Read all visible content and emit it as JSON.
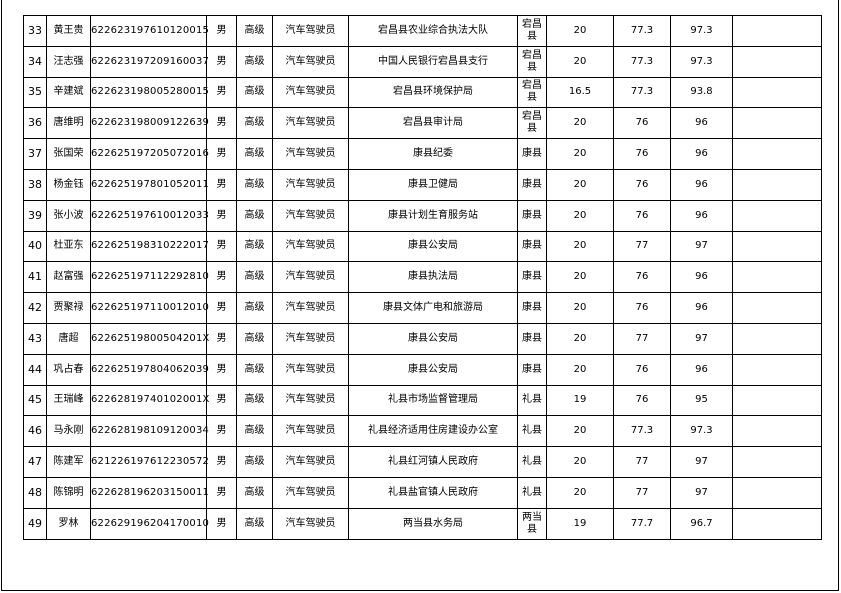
{
  "rows": [
    {
      "no": "33",
      "name": "黄王贵",
      "id": "622623197610120015",
      "gender": "男",
      "level": "高级",
      "job": "汽车驾驶员",
      "unit": "宕昌县农业综合执法大队",
      "county": "宕昌县",
      "score1": "20",
      "score2": "77.3",
      "total": "97.3",
      "remark": ""
    },
    {
      "no": "34",
      "name": "汪志强",
      "id": "622623197209160037",
      "gender": "男",
      "level": "高级",
      "job": "汽车驾驶员",
      "unit": "中国人民银行宕昌县支行",
      "county": "宕昌县",
      "score1": "20",
      "score2": "77.3",
      "total": "97.3",
      "remark": ""
    },
    {
      "no": "35",
      "name": "辛建斌",
      "id": "622623198005280015",
      "gender": "男",
      "level": "高级",
      "job": "汽车驾驶员",
      "unit": "宕昌县环境保护局",
      "county": "宕昌县",
      "score1": "16.5",
      "score2": "77.3",
      "total": "93.8",
      "remark": ""
    },
    {
      "no": "36",
      "name": "唐维明",
      "id": "622623198009122639",
      "gender": "男",
      "level": "高级",
      "job": "汽车驾驶员",
      "unit": "宕昌县审计局",
      "county": "宕昌县",
      "score1": "20",
      "score2": "76",
      "total": "96",
      "remark": ""
    },
    {
      "no": "37",
      "name": "张国荣",
      "id": "622625197205072016",
      "gender": "男",
      "level": "高级",
      "job": "汽车驾驶员",
      "unit": "康县纪委",
      "county": "康县",
      "score1": "20",
      "score2": "76",
      "total": "96",
      "remark": ""
    },
    {
      "no": "38",
      "name": "杨金钰",
      "id": "622625197801052011",
      "gender": "男",
      "level": "高级",
      "job": "汽车驾驶员",
      "unit": "康县卫健局",
      "county": "康县",
      "score1": "20",
      "score2": "76",
      "total": "96",
      "remark": ""
    },
    {
      "no": "39",
      "name": "张小波",
      "id": "622625197610012033",
      "gender": "男",
      "level": "高级",
      "job": "汽车驾驶员",
      "unit": "康县计划生育服务站",
      "county": "康县",
      "score1": "20",
      "score2": "76",
      "total": "96",
      "remark": ""
    },
    {
      "no": "40",
      "name": "杜亚东",
      "id": "622625198310222017",
      "gender": "男",
      "level": "高级",
      "job": "汽车驾驶员",
      "unit": "康县公安局",
      "county": "康县",
      "score1": "20",
      "score2": "77",
      "total": "97",
      "remark": ""
    },
    {
      "no": "41",
      "name": "赵富强",
      "id": "622625197112292810",
      "gender": "男",
      "level": "高级",
      "job": "汽车驾驶员",
      "unit": "康县执法局",
      "county": "康县",
      "score1": "20",
      "score2": "76",
      "total": "96",
      "remark": ""
    },
    {
      "no": "42",
      "name": "贾聚禄",
      "id": "622625197110012010",
      "gender": "男",
      "level": "高级",
      "job": "汽车驾驶员",
      "unit": "康县文体广电和旅游局",
      "county": "康县",
      "score1": "20",
      "score2": "76",
      "total": "96",
      "remark": ""
    },
    {
      "no": "43",
      "name": "唐超",
      "id": "62262519800504201X",
      "gender": "男",
      "level": "高级",
      "job": "汽车驾驶员",
      "unit": "康县公安局",
      "county": "康县",
      "score1": "20",
      "score2": "77",
      "total": "97",
      "remark": ""
    },
    {
      "no": "44",
      "name": "巩占春",
      "id": "622625197804062039",
      "gender": "男",
      "level": "高级",
      "job": "汽车驾驶员",
      "unit": "康县公安局",
      "county": "康县",
      "score1": "20",
      "score2": "76",
      "total": "96",
      "remark": ""
    },
    {
      "no": "45",
      "name": "王瑞峰",
      "id": "62262819740102001X",
      "gender": "男",
      "level": "高级",
      "job": "汽车驾驶员",
      "unit": "礼县市场监督管理局",
      "county": "礼县",
      "score1": "19",
      "score2": "76",
      "total": "95",
      "remark": ""
    },
    {
      "no": "46",
      "name": "马永刚",
      "id": "622628198109120034",
      "gender": "男",
      "level": "高级",
      "job": "汽车驾驶员",
      "unit": "礼县经济适用住房建设办公室",
      "county": "礼县",
      "score1": "20",
      "score2": "77.3",
      "total": "97.3",
      "remark": ""
    },
    {
      "no": "47",
      "name": "陈建军",
      "id": "621226197612230572",
      "gender": "男",
      "level": "高级",
      "job": "汽车驾驶员",
      "unit": "礼县红河镇人民政府",
      "county": "礼县",
      "score1": "20",
      "score2": "77",
      "total": "97",
      "remark": ""
    },
    {
      "no": "48",
      "name": "陈锦明",
      "id": "622628196203150011",
      "gender": "男",
      "level": "高级",
      "job": "汽车驾驶员",
      "unit": "礼县盐官镇人民政府",
      "county": "礼县",
      "score1": "20",
      "score2": "77",
      "total": "97",
      "remark": ""
    },
    {
      "no": "49",
      "name": "罗林",
      "id": "622629196204170010",
      "gender": "男",
      "level": "高级",
      "job": "汽车驾驶员",
      "unit": "两当县水务局",
      "county": "两当县",
      "score1": "19",
      "score2": "77.7",
      "total": "96.7",
      "remark": ""
    }
  ]
}
